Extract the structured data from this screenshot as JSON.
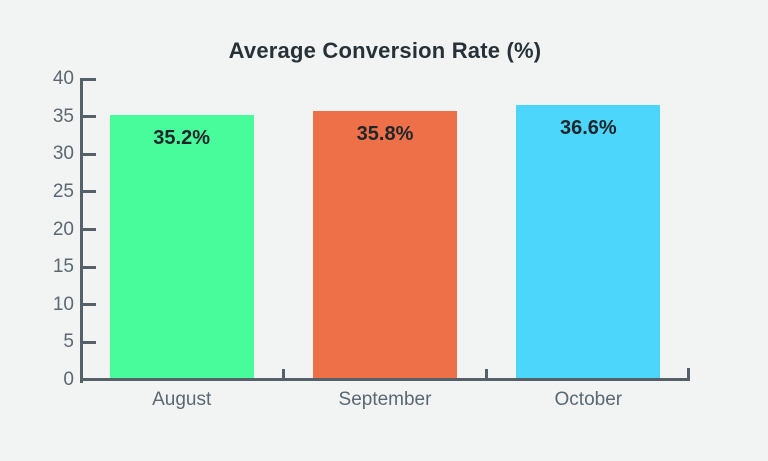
{
  "page": {
    "background_color": "#f2f4f4"
  },
  "chart_data": {
    "type": "bar",
    "title": "Average Conversion Rate (%)",
    "categories": [
      "August",
      "September",
      "October"
    ],
    "values": [
      35.2,
      35.8,
      36.6
    ],
    "value_labels": [
      "35.2%",
      "35.8%",
      "36.6%"
    ],
    "bar_colors": [
      "#48fb9b",
      "#ed7049",
      "#4dd6fb"
    ],
    "xlabel": "",
    "ylabel": "",
    "ylim": [
      0,
      40
    ],
    "yticks": [
      0,
      5,
      10,
      15,
      20,
      25,
      30,
      35,
      40
    ],
    "grid": false,
    "legend": "none",
    "colors": {
      "title": "#263238",
      "axis": "#566069",
      "tick_label": "#5a6872",
      "value_label": "#1f262b"
    }
  }
}
